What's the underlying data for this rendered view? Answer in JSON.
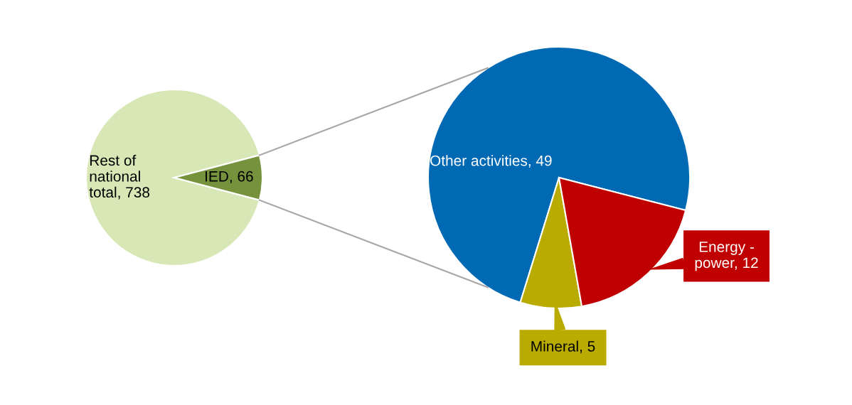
{
  "chart_data": [
    {
      "type": "pie",
      "categories": [
        "Rest of national total, 738",
        "IED, 66"
      ],
      "values": [
        738,
        66
      ],
      "colors": [
        "#d7e8b6",
        "#76923c"
      ]
    },
    {
      "type": "pie",
      "categories": [
        "Other activities, 49",
        "Mineral, 5",
        "Energy - power, 12"
      ],
      "values": [
        49,
        5,
        12
      ],
      "colors": [
        "#0069b4",
        "#b9ab00",
        "#c00000"
      ]
    }
  ]
}
